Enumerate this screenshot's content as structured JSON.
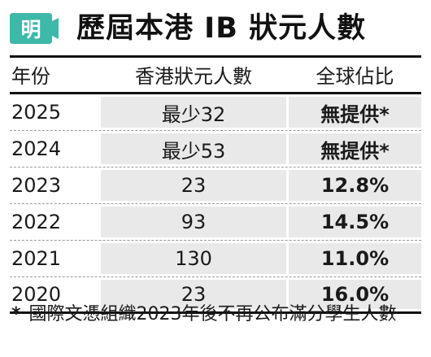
{
  "header": {
    "logo_char": "明",
    "logo_color": "#3eb8a8",
    "title": "歷屆本港 IB 狀元人數"
  },
  "table": {
    "columns": [
      "年份",
      "香港狀元人數",
      "全球佔比"
    ],
    "rows": [
      {
        "year": "2025",
        "count": "最少32",
        "share": "無提供*"
      },
      {
        "year": "2024",
        "count": "最少53",
        "share": "無提供*"
      },
      {
        "year": "2023",
        "count": "23",
        "share": "12.8%"
      },
      {
        "year": "2022",
        "count": "93",
        "share": "14.5%"
      },
      {
        "year": "2021",
        "count": "130",
        "share": "11.0%"
      },
      {
        "year": "2020",
        "count": "23",
        "share": "16.0%"
      }
    ]
  },
  "footnote": {
    "mark": "*",
    "text": "國際文憑組織2023年後不再公布滿分學生人數"
  }
}
